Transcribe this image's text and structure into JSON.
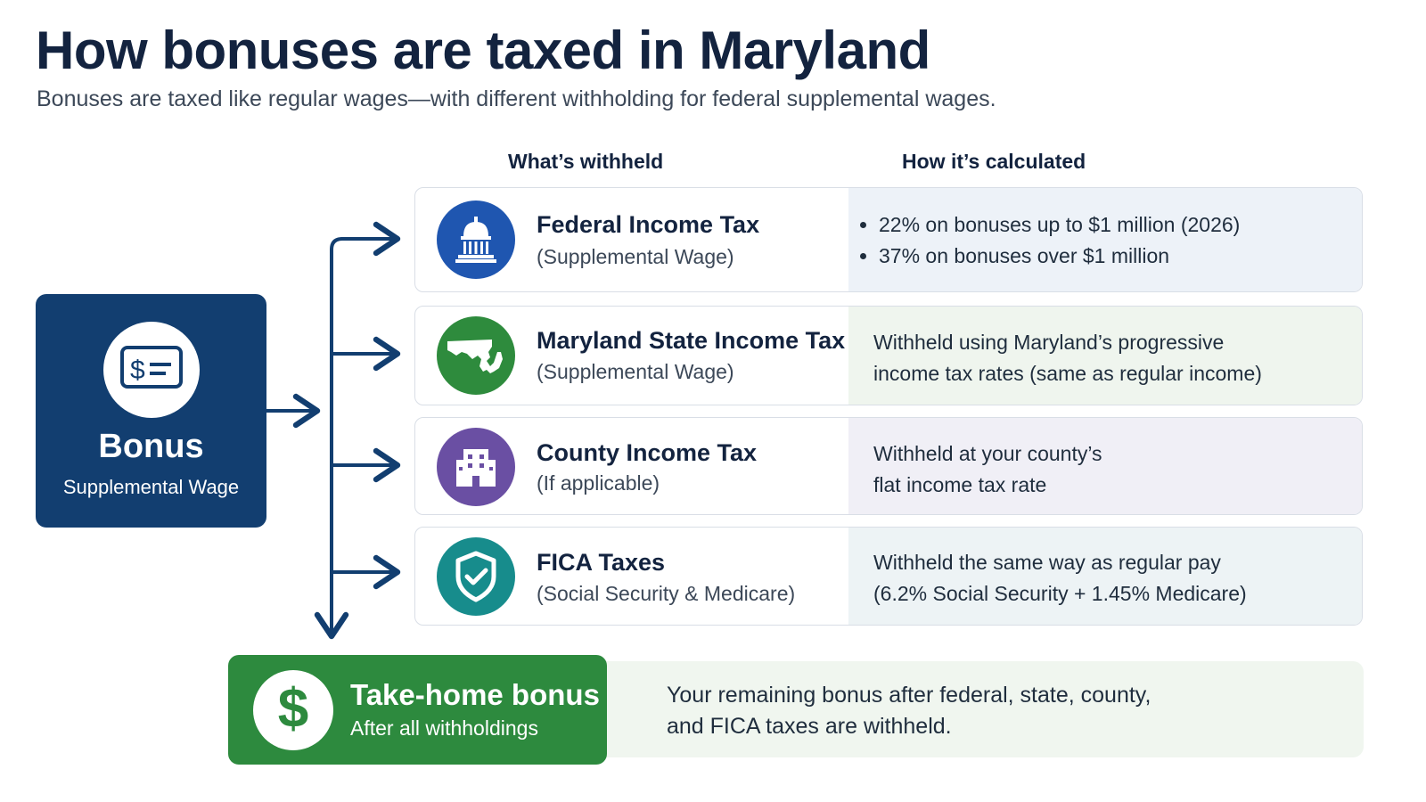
{
  "title": "How bonuses are taxed in Maryland",
  "subtitle": "Bonuses are taxed like regular wages—with different withholding for federal supplemental wages.",
  "columns": {
    "withheld": "What’s withheld",
    "calculated": "How it’s calculated"
  },
  "source": {
    "title": "Bonus",
    "subtitle": "Supplemental Wage",
    "icon": "check-icon",
    "color": "#123e70"
  },
  "taxes": [
    {
      "name": "Federal Income Tax",
      "note": "(Supplemental Wage)",
      "icon": "capitol-icon",
      "color": "#1f56b0",
      "panel_color": "#edf2f8",
      "bullets": [
        "22% on bonuses up to $1 million (2026)",
        "37% on bonuses over $1 million"
      ]
    },
    {
      "name": "Maryland State Income Tax",
      "note": "(Supplemental Wage)",
      "icon": "maryland-map-icon",
      "color": "#2e8b3d",
      "panel_color": "#eff5ee",
      "lines": [
        "Withheld using Maryland’s progressive",
        "income tax rates (same as regular income)"
      ]
    },
    {
      "name": "County Income Tax",
      "note": "(If applicable)",
      "icon": "building-icon",
      "color": "#6a4fa3",
      "panel_color": "#f0eff6",
      "lines": [
        "Withheld at your county’s",
        "flat income tax rate"
      ]
    },
    {
      "name": "FICA Taxes",
      "note": "(Social Security & Medicare)",
      "icon": "shield-check-icon",
      "color": "#178c8c",
      "panel_color": "#edf3f5",
      "lines": [
        "Withheld the same way as regular pay",
        "(6.2% Social Security + 1.45% Medicare)"
      ]
    }
  ],
  "result": {
    "title": "Take-home bonus",
    "subtitle": "After all withholdings",
    "symbol": "$",
    "icon": "dollar-icon",
    "color": "#2d8a3e",
    "description": [
      "Your remaining bonus after federal, state, county,",
      "and FICA taxes are withheld."
    ]
  },
  "connector_color": "#123e70"
}
